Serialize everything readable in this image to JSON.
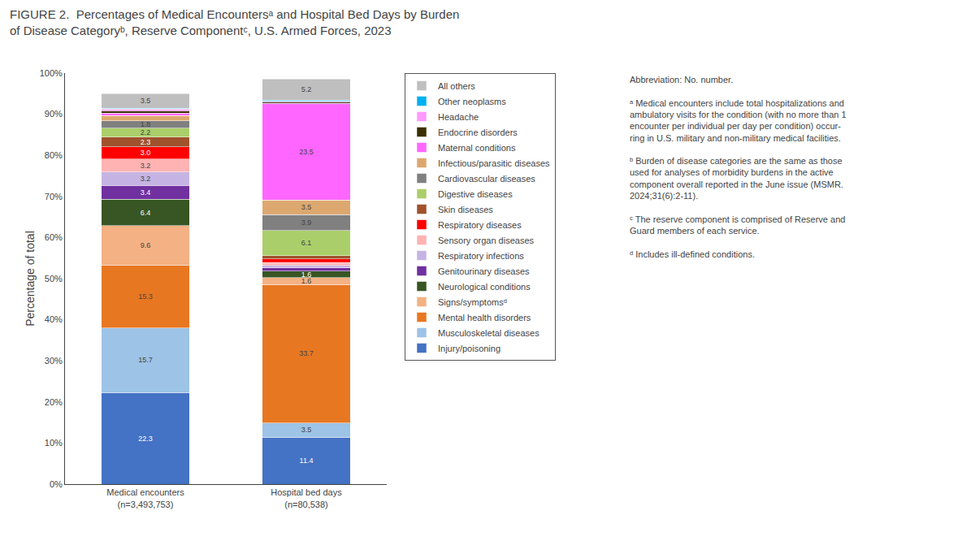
{
  "chart_data": {
    "type": "bar",
    "title": "FIGURE 2.  Percentages of Medical Encountersᵃ and Hospital Bed Days by Burden\nof Disease Categoryᵇ, Reserve Componentᶜ, U.S. Armed Forces, 2023",
    "ylabel": "Percentage of total",
    "categories": [
      "Medical encounters\n(n=3,493,753)",
      "Hospital bed days\n(n=80,538)"
    ],
    "stacked": true,
    "grid": false,
    "legend": "right",
    "data_labels": true,
    "ylim": [
      0,
      100
    ],
    "yticks": [
      {
        "value": 0,
        "label": "0%"
      },
      {
        "value": 10,
        "label": "10%"
      },
      {
        "value": 20,
        "label": "20%"
      },
      {
        "value": 30,
        "label": "30%"
      },
      {
        "value": 40,
        "label": "40%"
      },
      {
        "value": 50,
        "label": "50%"
      },
      {
        "value": 60,
        "label": "60%"
      },
      {
        "value": 70,
        "label": "70%"
      },
      {
        "value": 80,
        "label": "80%"
      },
      {
        "value": 90,
        "label": "90%"
      },
      {
        "value": 100,
        "label": "100%"
      }
    ],
    "series": [
      {
        "name": "Injury/poisoning",
        "color": "#4472C4",
        "values": [
          22.3,
          11.4
        ],
        "value_labels": [
          "22.3",
          "11.4"
        ]
      },
      {
        "name": "Musculoskeletal diseases",
        "color": "#9DC3E6",
        "values": [
          15.7,
          3.5
        ],
        "value_labels": [
          "15.7",
          "3.5"
        ]
      },
      {
        "name": "Mental health disorders",
        "color": "#E87722",
        "values": [
          15.3,
          33.7
        ],
        "value_labels": [
          "15.3",
          "33.7"
        ]
      },
      {
        "name": "Signs/symptomsᵈ",
        "color": "#F4B183",
        "values": [
          9.6,
          1.6
        ],
        "value_labels": [
          "9.6",
          "1.6"
        ]
      },
      {
        "name": "Neurological conditions",
        "color": "#375623",
        "values": [
          6.4,
          1.6
        ],
        "value_labels": [
          "6.4",
          "1.6"
        ]
      },
      {
        "name": "Genitourinary diseases",
        "color": "#7030A0",
        "values": [
          3.4,
          0.8
        ],
        "value_labels": [
          "3.4",
          null
        ]
      },
      {
        "name": "Respiratory infections",
        "color": "#C5B4E3",
        "values": [
          3.2,
          0.6
        ],
        "value_labels": [
          "3.2",
          null
        ]
      },
      {
        "name": "Sensory organ diseases",
        "color": "#FFB3B3",
        "values": [
          3.2,
          0.7
        ],
        "value_labels": [
          "3.2",
          null
        ]
      },
      {
        "name": "Respiratory diseases",
        "color": "#FF0000",
        "values": [
          3.0,
          0.9
        ],
        "value_labels": [
          "3.0",
          null
        ]
      },
      {
        "name": "Skin diseases",
        "color": "#A0522D",
        "values": [
          2.3,
          0.8
        ],
        "value_labels": [
          "2.3",
          null
        ]
      },
      {
        "name": "Digestive diseases",
        "color": "#AACF6A",
        "values": [
          2.2,
          6.1
        ],
        "value_labels": [
          "2.2",
          "6.1"
        ]
      },
      {
        "name": "Cardiovascular diseases",
        "color": "#808080",
        "values": [
          1.8,
          3.9
        ],
        "value_labels": [
          "1.8",
          "3.9"
        ]
      },
      {
        "name": "Infectious/parasitic diseases",
        "color": "#DDA870",
        "values": [
          1.3,
          3.5
        ],
        "value_labels": [
          null,
          "3.5"
        ]
      },
      {
        "name": "Maternal conditions",
        "color": "#FF66FF",
        "values": [
          0.6,
          23.5
        ],
        "value_labels": [
          null,
          "23.5"
        ]
      },
      {
        "name": "Endocrine disorders",
        "color": "#3B3000",
        "values": [
          0.5,
          0.3
        ],
        "value_labels": [
          null,
          null
        ]
      },
      {
        "name": "Headache",
        "color": "#FF99FF",
        "values": [
          0.5,
          0.2
        ],
        "value_labels": [
          null,
          null
        ]
      },
      {
        "name": "Other neoplasms",
        "color": "#00B0F0",
        "values": [
          0.2,
          0.3
        ],
        "value_labels": [
          null,
          null
        ]
      },
      {
        "name": "All others",
        "color": "#BFBFBF",
        "values": [
          3.5,
          5.2
        ],
        "value_labels": [
          "3.5",
          "5.2"
        ]
      }
    ],
    "annotations": [
      "Abbreviation: No. number.",
      "ᵃ Medical encounters include total hospitalizations and\nambulatory visits for the condition (with no more than 1\nencounter per individual per day per condition) occur-\nring in U.S. military and non-military medical facilities.",
      "ᵇ Burden of disease categories are the same as those\nused for analyses of morbidity burdens in the active\ncomponent overall reported in the June issue (MSMR.\n2024;31(6):2-11).",
      "ᶜ The reserve component is comprised of Reserve and\nGuard members of each service.",
      "ᵈ Includes ill-defined conditions."
    ]
  }
}
